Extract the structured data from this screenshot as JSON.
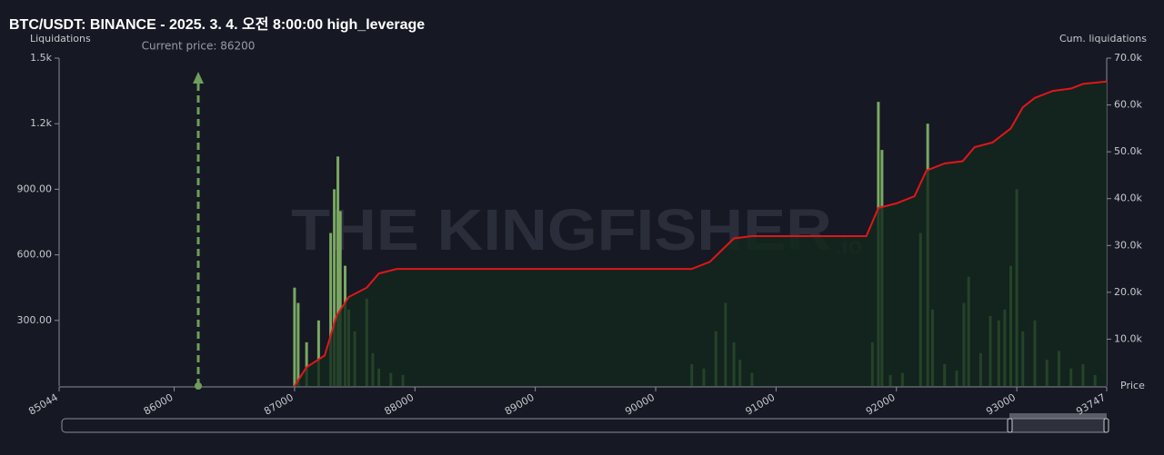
{
  "chart_data": {
    "type": "bar",
    "title": "BTC/USDT: BINANCE - 2025. 3. 4. 오전 8:00:00 high_leverage",
    "y_label": "Liquidations",
    "y2_label": "Cum. liquidations",
    "x_label": "Price",
    "watermark": "THE KINGFISHER",
    "watermark_suffix": ".io",
    "annotation": {
      "text": "Current price: 86200",
      "x": 86200,
      "color": "#6f9e5c"
    },
    "xlim": [
      85044,
      93747
    ],
    "xticks": [
      85044,
      86000,
      87000,
      88000,
      89000,
      90000,
      91000,
      92000,
      93000,
      93747
    ],
    "ylim": [
      0,
      1500
    ],
    "yticks": [
      {
        "value": 300,
        "label": "300.00"
      },
      {
        "value": 600,
        "label": "600.00"
      },
      {
        "value": 900,
        "label": "900.00"
      },
      {
        "value": 1200,
        "label": "1.2k"
      },
      {
        "value": 1500,
        "label": "1.5k"
      }
    ],
    "y2lim": [
      0,
      70000
    ],
    "y2ticks": [
      {
        "value": 10000,
        "label": "10.0k"
      },
      {
        "value": 20000,
        "label": "20.0k"
      },
      {
        "value": 30000,
        "label": "30.0k"
      },
      {
        "value": 40000,
        "label": "40.0k"
      },
      {
        "value": 50000,
        "label": "50.0k"
      },
      {
        "value": 60000,
        "label": "60.0k"
      },
      {
        "value": 70000,
        "label": "70.0k"
      }
    ],
    "grid": false,
    "series": [
      {
        "type": "bar",
        "color": "#7aa862",
        "x": [
          87000,
          87030,
          87100,
          87200,
          87300,
          87330,
          87360,
          87380,
          87420,
          87450,
          87500,
          87600,
          87650,
          87700,
          87800,
          87900,
          90300,
          90400,
          90500,
          90580,
          90650,
          90700,
          90800,
          91800,
          91850,
          91880,
          91950,
          92050,
          92200,
          92260,
          92300,
          92400,
          92500,
          92560,
          92600,
          92700,
          92780,
          92850,
          92900,
          92950,
          93000,
          93050,
          93150,
          93250,
          93350,
          93450,
          93550,
          93650
        ],
        "values": [
          450,
          380,
          200,
          300,
          700,
          900,
          1050,
          800,
          550,
          350,
          250,
          400,
          150,
          80,
          60,
          50,
          100,
          80,
          250,
          380,
          200,
          120,
          60,
          200,
          1300,
          1080,
          50,
          60,
          700,
          1200,
          350,
          100,
          70,
          380,
          500,
          150,
          320,
          300,
          350,
          550,
          900,
          250,
          300,
          120,
          160,
          80,
          100,
          50
        ]
      },
      {
        "type": "line",
        "axis": "y2",
        "color": "#e0161b",
        "fill": "#12281c",
        "x": [
          87000,
          87100,
          87250,
          87350,
          87450,
          87600,
          87700,
          87850,
          88500,
          90300,
          90450,
          90550,
          90650,
          90800,
          91750,
          91850,
          92000,
          92150,
          92250,
          92400,
          92550,
          92650,
          92800,
          92950,
          93050,
          93150,
          93300,
          93450,
          93550,
          93747
        ],
        "values": [
          0,
          4000,
          6500,
          15000,
          19000,
          21000,
          24000,
          25000,
          25000,
          25000,
          26500,
          29000,
          31500,
          32000,
          32000,
          38000,
          39000,
          40500,
          46000,
          47500,
          48000,
          51000,
          52000,
          55000,
          59500,
          61500,
          63000,
          63500,
          64500,
          65000
        ]
      }
    ]
  }
}
